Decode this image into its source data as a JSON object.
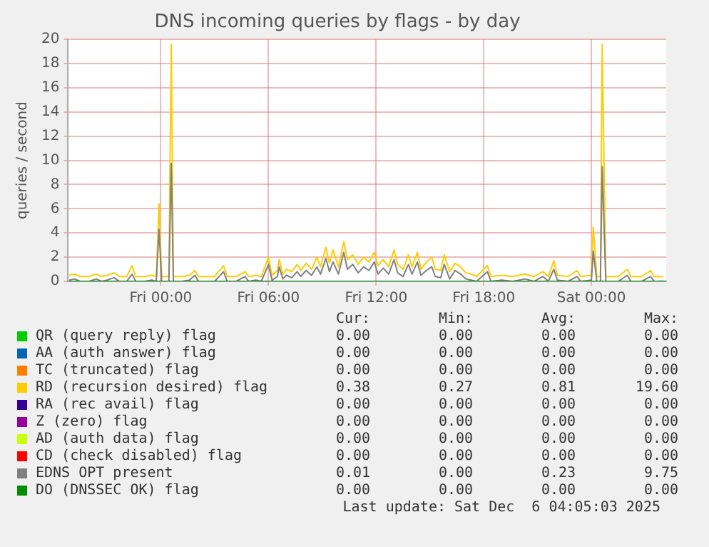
{
  "chart_data": {
    "type": "line",
    "title": "DNS incoming queries by flags - by day",
    "ylabel": "queries / second",
    "xlim": [
      "2025-12-04T18:50",
      "2025-12-06T04:10"
    ],
    "xticks": [
      {
        "value": "2025-12-05T00:00",
        "label": "Fri 00:00"
      },
      {
        "value": "2025-12-05T06:00",
        "label": "Fri 06:00"
      },
      {
        "value": "2025-12-05T12:00",
        "label": "Fri 12:00"
      },
      {
        "value": "2025-12-05T18:00",
        "label": "Fri 18:00"
      },
      {
        "value": "2025-12-06T00:00",
        "label": "Sat 00:00"
      }
    ],
    "ylim": [
      0,
      20
    ],
    "yticks": [
      0,
      2,
      4,
      6,
      8,
      10,
      12,
      14,
      16,
      18,
      20
    ],
    "grid": true,
    "legend": "bottom",
    "marker": "none",
    "x": [
      "2025-12-04T18:54",
      "2025-12-04T19:12",
      "2025-12-04T19:30",
      "2025-12-04T20:00",
      "2025-12-04T20:24",
      "2025-12-04T20:42",
      "2025-12-04T21:00",
      "2025-12-04T21:24",
      "2025-12-04T21:42",
      "2025-12-04T22:06",
      "2025-12-04T22:24",
      "2025-12-04T22:36",
      "2025-12-04T23:06",
      "2025-12-04T23:30",
      "2025-12-04T23:45",
      "2025-12-04T23:54",
      "2025-12-05T00:03",
      "2025-12-05T00:27",
      "2025-12-05T00:35",
      "2025-12-05T00:42",
      "2025-12-05T01:12",
      "2025-12-05T01:36",
      "2025-12-05T01:54",
      "2025-12-05T02:06",
      "2025-12-05T02:36",
      "2025-12-05T03:00",
      "2025-12-05T03:30",
      "2025-12-05T03:42",
      "2025-12-05T04:12",
      "2025-12-05T04:42",
      "2025-12-05T04:54",
      "2025-12-05T05:18",
      "2025-12-05T05:36",
      "2025-12-05T06:00",
      "2025-12-05T06:12",
      "2025-12-05T06:30",
      "2025-12-05T06:36",
      "2025-12-05T06:48",
      "2025-12-05T07:00",
      "2025-12-05T07:18",
      "2025-12-05T07:36",
      "2025-12-05T07:48",
      "2025-12-05T08:06",
      "2025-12-05T08:24",
      "2025-12-05T08:42",
      "2025-12-05T08:54",
      "2025-12-05T09:12",
      "2025-12-05T09:24",
      "2025-12-05T09:36",
      "2025-12-05T09:54",
      "2025-12-05T10:12",
      "2025-12-05T10:24",
      "2025-12-05T10:42",
      "2025-12-05T11:00",
      "2025-12-05T11:18",
      "2025-12-05T11:36",
      "2025-12-05T11:54",
      "2025-12-05T12:06",
      "2025-12-05T12:24",
      "2025-12-05T12:42",
      "2025-12-05T13:00",
      "2025-12-05T13:12",
      "2025-12-05T13:30",
      "2025-12-05T13:48",
      "2025-12-05T14:00",
      "2025-12-05T14:18",
      "2025-12-05T14:30",
      "2025-12-05T14:48",
      "2025-12-05T15:06",
      "2025-12-05T15:18",
      "2025-12-05T15:36",
      "2025-12-05T15:48",
      "2025-12-05T16:06",
      "2025-12-05T16:24",
      "2025-12-05T16:42",
      "2025-12-05T17:00",
      "2025-12-05T17:18",
      "2025-12-05T17:36",
      "2025-12-05T18:12",
      "2025-12-05T18:24",
      "2025-12-05T19:00",
      "2025-12-05T19:36",
      "2025-12-05T20:18",
      "2025-12-05T20:48",
      "2025-12-05T21:18",
      "2025-12-05T21:36",
      "2025-12-05T21:54",
      "2025-12-05T22:06",
      "2025-12-05T22:42",
      "2025-12-05T23:12",
      "2025-12-05T23:24",
      "2025-12-06T00:00",
      "2025-12-06T00:06",
      "2025-12-06T00:18",
      "2025-12-06T00:30",
      "2025-12-06T00:36",
      "2025-12-06T00:48",
      "2025-12-06T01:30",
      "2025-12-06T02:00",
      "2025-12-06T02:12",
      "2025-12-06T02:48",
      "2025-12-06T03:18",
      "2025-12-06T03:30",
      "2025-12-06T04:00"
    ],
    "series": [
      {
        "name": "QR (query reply) flag",
        "color": "#00cc00",
        "values": [
          null,
          null,
          null,
          null,
          null,
          null,
          null,
          null,
          null,
          null,
          null,
          null,
          null,
          null,
          null,
          null,
          null,
          null,
          null,
          null,
          null,
          null,
          null,
          null,
          null,
          null,
          null,
          null,
          null,
          null,
          null,
          null,
          null,
          null,
          null,
          null,
          null,
          null,
          null,
          null,
          null,
          null,
          null,
          null,
          null,
          null,
          null,
          null,
          null,
          null,
          null,
          null,
          null,
          null,
          null,
          null,
          null,
          null,
          null,
          null,
          null,
          null,
          null,
          null,
          null,
          null,
          null,
          null,
          null,
          null,
          null,
          null,
          null,
          null,
          null,
          null,
          null,
          null,
          null,
          null,
          null,
          null,
          null,
          null,
          null,
          null,
          null,
          null,
          null,
          null,
          null,
          null,
          null,
          null,
          null,
          null,
          null,
          null,
          null,
          null,
          null,
          null,
          null,
          null
        ]
      },
      {
        "name": "AA (auth answer) flag",
        "color": "#0066b3",
        "values": [
          null,
          null,
          null,
          null,
          null,
          null,
          null,
          null,
          null,
          null,
          null,
          null,
          null,
          null,
          null,
          null,
          null,
          null,
          null,
          null,
          null,
          null,
          null,
          null,
          null,
          null,
          null,
          null,
          null,
          null,
          null,
          null,
          null,
          null,
          null,
          null,
          null,
          null,
          null,
          null,
          null,
          null,
          null,
          null,
          null,
          null,
          null,
          null,
          null,
          null,
          null,
          null,
          null,
          null,
          null,
          null,
          null,
          null,
          null,
          null,
          null,
          null,
          null,
          null,
          null,
          null,
          null,
          null,
          null,
          null,
          null,
          null,
          null,
          null,
          null,
          null,
          null,
          null,
          null,
          null,
          null,
          null,
          null,
          null,
          null,
          null,
          null,
          null,
          null,
          null,
          null,
          null,
          null,
          null,
          null,
          null,
          null,
          null,
          null,
          null,
          null,
          null,
          null,
          null
        ]
      },
      {
        "name": "TC (truncated) flag",
        "color": "#ff8000",
        "values": [
          null,
          null,
          null,
          null,
          null,
          null,
          null,
          null,
          null,
          null,
          null,
          null,
          null,
          null,
          null,
          null,
          null,
          null,
          null,
          null,
          null,
          null,
          null,
          null,
          null,
          null,
          null,
          null,
          null,
          null,
          null,
          null,
          null,
          null,
          null,
          null,
          null,
          null,
          null,
          null,
          null,
          null,
          null,
          null,
          null,
          null,
          null,
          null,
          null,
          null,
          null,
          null,
          null,
          null,
          null,
          null,
          null,
          null,
          null,
          null,
          null,
          null,
          null,
          null,
          null,
          null,
          null,
          null,
          null,
          null,
          null,
          null,
          null,
          null,
          null,
          null,
          null,
          null,
          null,
          null,
          null,
          null,
          null,
          null,
          null,
          null,
          null,
          null,
          null,
          null,
          null,
          null,
          null,
          null,
          null,
          null,
          null,
          null,
          null,
          null,
          null,
          null,
          null,
          null
        ]
      },
      {
        "name": "RD (recursion desired) flag",
        "color": "#ffcc00",
        "values": [
          0.5,
          0.6,
          0.4,
          0.4,
          0.6,
          0.4,
          0.5,
          0.7,
          0.4,
          0.4,
          1.3,
          0.4,
          0.4,
          0.5,
          0.4,
          6.4,
          0.4,
          0.4,
          19.6,
          0.4,
          0.4,
          0.5,
          0.9,
          0.4,
          0.4,
          0.4,
          1.3,
          0.4,
          0.4,
          0.8,
          0.4,
          0.5,
          0.4,
          2.0,
          0.5,
          0.9,
          1.8,
          0.6,
          1.0,
          0.8,
          1.4,
          0.9,
          1.5,
          1.0,
          2.0,
          1.2,
          2.8,
          1.5,
          2.6,
          1.2,
          3.3,
          1.8,
          2.2,
          1.4,
          2.0,
          1.6,
          2.4,
          1.3,
          1.8,
          1.2,
          2.6,
          1.4,
          1.0,
          2.2,
          1.2,
          2.4,
          1.0,
          1.6,
          2.0,
          1.0,
          0.9,
          2.2,
          0.8,
          1.5,
          1.2,
          0.7,
          0.6,
          0.4,
          1.3,
          0.4,
          0.5,
          0.4,
          0.6,
          0.4,
          0.8,
          0.4,
          1.7,
          0.5,
          0.4,
          0.9,
          0.4,
          0.5,
          4.5,
          0.4,
          0.4,
          19.6,
          0.4,
          0.4,
          1.0,
          0.4,
          0.4,
          0.9,
          0.4,
          0.38
        ]
      },
      {
        "name": "RA (rec avail) flag",
        "color": "#330099",
        "values": [
          null,
          null,
          null,
          null,
          null,
          null,
          null,
          null,
          null,
          null,
          null,
          null,
          null,
          null,
          null,
          null,
          null,
          null,
          null,
          null,
          null,
          null,
          null,
          null,
          null,
          null,
          null,
          null,
          null,
          null,
          null,
          null,
          null,
          null,
          null,
          null,
          null,
          null,
          null,
          null,
          null,
          null,
          null,
          null,
          null,
          null,
          null,
          null,
          null,
          null,
          null,
          null,
          null,
          null,
          null,
          null,
          null,
          null,
          null,
          null,
          null,
          null,
          null,
          null,
          null,
          null,
          null,
          null,
          null,
          null,
          null,
          null,
          null,
          null,
          null,
          null,
          null,
          null,
          null,
          null,
          null,
          null,
          null,
          null,
          null,
          null,
          null,
          null,
          null,
          null,
          null,
          null,
          null,
          null,
          null,
          null,
          null,
          null,
          null,
          null,
          null,
          null,
          null,
          null
        ]
      },
      {
        "name": "Z (zero) flag",
        "color": "#990099",
        "values": [
          null,
          null,
          null,
          null,
          null,
          null,
          null,
          null,
          null,
          null,
          null,
          null,
          null,
          null,
          null,
          null,
          null,
          null,
          null,
          null,
          null,
          null,
          null,
          null,
          null,
          null,
          null,
          null,
          null,
          null,
          null,
          null,
          null,
          null,
          null,
          null,
          null,
          null,
          null,
          null,
          null,
          null,
          null,
          null,
          null,
          null,
          null,
          null,
          null,
          null,
          null,
          null,
          null,
          null,
          null,
          null,
          null,
          null,
          null,
          null,
          null,
          null,
          null,
          null,
          null,
          null,
          null,
          null,
          null,
          null,
          null,
          null,
          null,
          null,
          null,
          null,
          null,
          null,
          null,
          null,
          null,
          null,
          null,
          null,
          null,
          null,
          null,
          null,
          null,
          null,
          null,
          null,
          null,
          null,
          null,
          null,
          null,
          null,
          null,
          null,
          null,
          null,
          null,
          null
        ]
      },
      {
        "name": "AD (auth data) flag",
        "color": "#ccff00",
        "values": [
          null,
          null,
          null,
          null,
          null,
          null,
          null,
          null,
          null,
          null,
          null,
          null,
          null,
          null,
          null,
          null,
          null,
          null,
          null,
          null,
          null,
          null,
          null,
          null,
          null,
          null,
          null,
          null,
          null,
          null,
          null,
          null,
          null,
          null,
          null,
          null,
          null,
          null,
          null,
          null,
          null,
          null,
          null,
          null,
          null,
          null,
          null,
          null,
          null,
          null,
          null,
          null,
          null,
          null,
          null,
          null,
          null,
          null,
          null,
          null,
          null,
          null,
          null,
          null,
          null,
          null,
          null,
          null,
          null,
          null,
          null,
          null,
          null,
          null,
          null,
          null,
          null,
          null,
          null,
          null,
          null,
          null,
          null,
          null,
          null,
          null,
          null,
          null,
          null,
          null,
          null,
          null,
          null,
          null,
          null,
          null,
          null,
          null,
          null,
          null,
          null,
          null,
          null,
          null
        ]
      },
      {
        "name": "CD (check disabled) flag",
        "color": "#ff0000",
        "values": [
          null,
          null,
          null,
          null,
          null,
          null,
          null,
          null,
          null,
          null,
          null,
          null,
          null,
          null,
          null,
          null,
          null,
          null,
          null,
          null,
          null,
          null,
          null,
          null,
          null,
          null,
          null,
          null,
          null,
          null,
          null,
          null,
          null,
          null,
          null,
          null,
          null,
          null,
          null,
          null,
          null,
          null,
          null,
          null,
          null,
          null,
          null,
          null,
          null,
          null,
          null,
          null,
          null,
          null,
          null,
          null,
          null,
          null,
          null,
          null,
          null,
          null,
          null,
          null,
          null,
          null,
          null,
          null,
          null,
          null,
          null,
          null,
          null,
          null,
          null,
          null,
          null,
          null,
          null,
          null,
          null,
          null,
          null,
          null,
          null,
          null,
          null,
          null,
          null,
          null,
          null,
          null,
          null,
          null,
          null,
          null,
          null,
          null,
          null,
          null,
          null,
          null,
          null,
          null
        ]
      },
      {
        "name": "EDNS OPT present",
        "color": "#808080",
        "values": [
          0.1,
          0.2,
          0,
          0,
          0.2,
          0,
          0.1,
          0.3,
          0,
          0,
          0.6,
          0,
          0,
          0.1,
          0,
          4.3,
          0,
          0,
          9.75,
          0,
          0,
          0.1,
          0.5,
          0,
          0,
          0,
          0.8,
          0,
          0,
          0.4,
          0,
          0.1,
          0,
          1.4,
          0.1,
          0.4,
          1.2,
          0.2,
          0.5,
          0.3,
          0.8,
          0.4,
          0.9,
          0.5,
          1.2,
          0.6,
          1.9,
          0.8,
          1.6,
          0.6,
          2.4,
          1.0,
          1.4,
          0.7,
          1.2,
          0.9,
          1.6,
          0.6,
          1.1,
          0.6,
          1.8,
          0.7,
          0.4,
          1.4,
          0.6,
          1.6,
          0.5,
          0.9,
          1.2,
          0.4,
          0.3,
          1.4,
          0.2,
          0.9,
          0.6,
          0.2,
          0.1,
          0,
          0.8,
          0,
          0.1,
          0,
          0.2,
          0,
          0.4,
          0,
          1.0,
          0.1,
          0,
          0.4,
          0,
          0.1,
          2.5,
          0,
          0,
          9.5,
          0,
          0,
          0.5,
          0,
          0,
          0.4,
          0,
          0.01
        ]
      },
      {
        "name": "DO (DNSSEC OK) flag",
        "color": "#008f00",
        "x": [
          "2025-12-04T18:50",
          "2025-12-06T04:10"
        ],
        "values": [
          0,
          0
        ]
      }
    ],
    "annotations": [
      "Cur:",
      "Min:",
      "Avg:",
      "Max:",
      "0.00",
      "0.00",
      "0.00",
      "0.00",
      "0.00",
      "0.00",
      "0.00",
      "0.00",
      "0.00",
      "0.00",
      "0.00",
      "0.00",
      "0.38",
      "0.27",
      "0.81",
      "19.60",
      "0.00",
      "0.00",
      "0.00",
      "0.00",
      "0.00",
      "0.00",
      "0.00",
      "0.00",
      "0.00",
      "0.00",
      "0.00",
      "0.00",
      "0.00",
      "0.00",
      "0.00",
      "0.00",
      "0.01",
      "0.00",
      "0.23",
      "9.75",
      "0.00",
      "0.00",
      "0.00",
      "0.00",
      "Last update: Sat Dec  6 04:05:03 2025"
    ]
  }
}
